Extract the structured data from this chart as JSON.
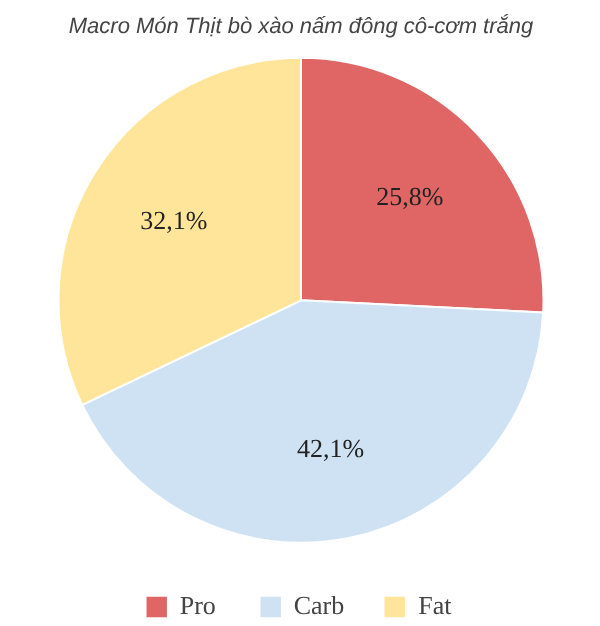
{
  "chart_data": {
    "type": "pie",
    "title": "Macro Món Thịt bò xào nấm đông cô-cơm trắng",
    "categories": [
      "Pro",
      "Carb",
      "Fat"
    ],
    "values": [
      25.8,
      42.1,
      32.1
    ],
    "colors": [
      "#e06666",
      "#cfe2f3",
      "#ffe599"
    ],
    "value_labels": [
      "25,8%",
      "42,1%",
      "32,1%"
    ],
    "legend": "bottom"
  }
}
